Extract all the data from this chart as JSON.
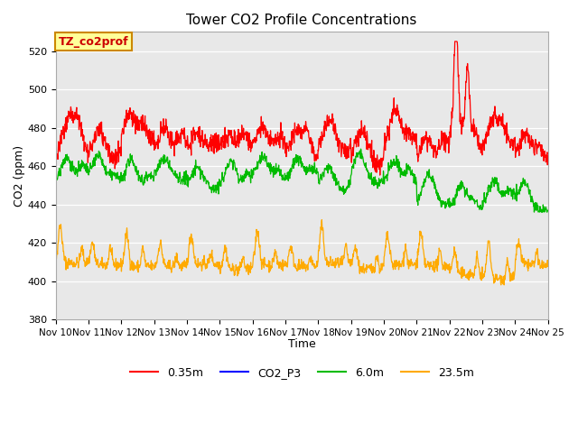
{
  "title": "Tower CO2 Profile Concentrations",
  "xlabel": "Time",
  "ylabel": "CO2 (ppm)",
  "ylim": [
    380,
    530
  ],
  "yticks": [
    380,
    400,
    420,
    440,
    460,
    480,
    500,
    520
  ],
  "background_color": "#ffffff",
  "plot_bg_color": "#e8e8e8",
  "legend_labels": [
    "0.35m",
    "CO2_P3",
    "6.0m",
    "23.5m"
  ],
  "legend_colors": [
    "#ff0000",
    "#0000ff",
    "#00bb00",
    "#ffaa00"
  ],
  "annotation_text": "TZ_co2prof",
  "annotation_bg": "#ffff99",
  "annotation_border": "#cc8800",
  "x_tick_labels": [
    "Nov 10",
    "Nov 11",
    "Nov 12",
    "Nov 13",
    "Nov 14",
    "Nov 15",
    "Nov 16",
    "Nov 17",
    "Nov 18",
    "Nov 19",
    "Nov 20",
    "Nov 21",
    "Nov 22",
    "Nov 23",
    "Nov 24",
    "Nov 25"
  ],
  "num_days": 15,
  "pts_per_day": 96
}
